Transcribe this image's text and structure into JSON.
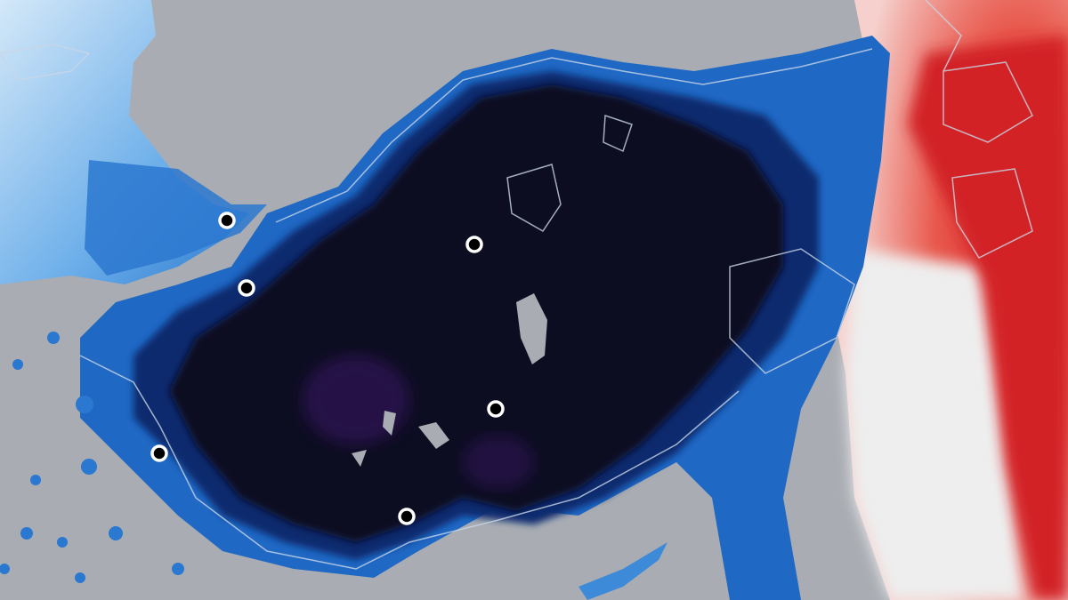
{
  "map": {
    "kind": "temperature-anomaly-map",
    "colors": {
      "sea": "#a9adb3",
      "cold_extreme": "#070b22",
      "cold_strong": "#0d2a6e",
      "cold": "#1a63c0",
      "cool": "#5fa6e6",
      "cool_light": "#bcdcf5",
      "neutral": "#f2f2f2",
      "warm": "#f07060",
      "hot": "#d8262a",
      "purple": "#3a1466",
      "contour": "#c9d6e6",
      "marker_fill": "#ffffff",
      "marker_ring": "#000000"
    },
    "markers": [
      {
        "icon": "city-marker-icon"
      },
      {
        "icon": "city-marker-icon"
      },
      {
        "icon": "city-marker-icon"
      },
      {
        "icon": "city-marker-icon"
      },
      {
        "icon": "city-marker-icon"
      },
      {
        "icon": "city-marker-icon"
      }
    ]
  }
}
